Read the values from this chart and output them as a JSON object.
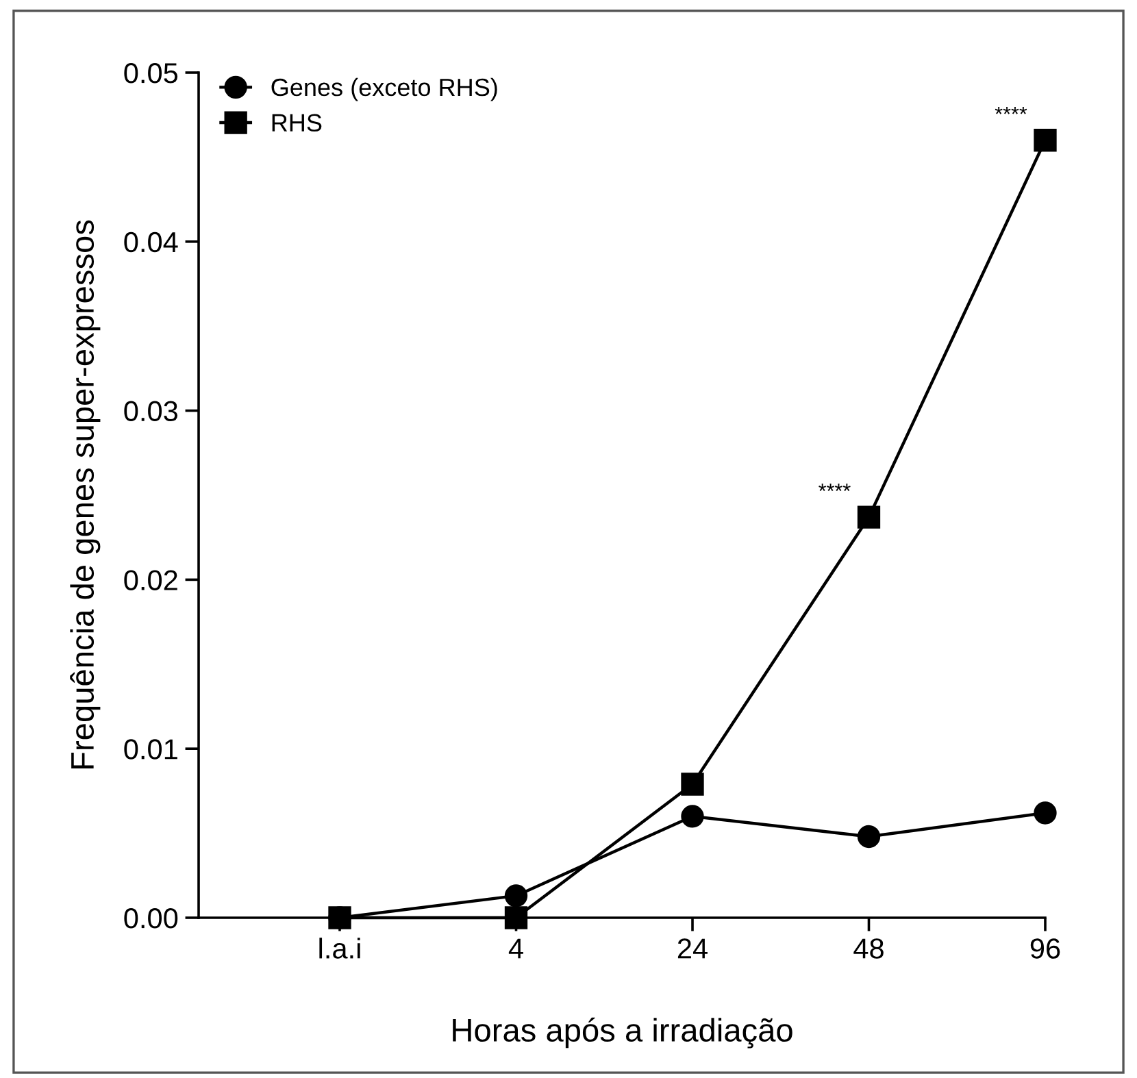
{
  "chart_data": {
    "type": "line",
    "xlabel": "Horas após a irradiação",
    "ylabel": "Frequência de genes super-expressos",
    "categories": [
      "l.a.i",
      "4",
      "24",
      "48",
      "96"
    ],
    "series": [
      {
        "name": "Genes (exceto RHS)",
        "color": "#000000",
        "marker": "circle",
        "values": [
          0.0,
          0.0013,
          0.006,
          0.0048,
          0.0062
        ]
      },
      {
        "name": "RHS",
        "color": "#000000",
        "marker": "square",
        "values": [
          0.0,
          0.0,
          0.0079,
          0.0237,
          0.046
        ]
      }
    ],
    "ylim": [
      0,
      0.05
    ],
    "yticks": [
      {
        "value": 0,
        "label": "0.00"
      },
      {
        "value": 0.01,
        "label": "0.01"
      },
      {
        "value": 0.02,
        "label": "0.02"
      },
      {
        "value": 0.03,
        "label": "0.03"
      },
      {
        "value": 0.04,
        "label": "0.04"
      },
      {
        "value": 0.05,
        "label": "0.05"
      }
    ],
    "annotations": [
      {
        "text": "****",
        "x": "48",
        "y": 0.0237
      },
      {
        "text": "****",
        "x": "96",
        "y": 0.046
      }
    ],
    "legend": "top left",
    "grid": false,
    "line_style": "solid"
  }
}
